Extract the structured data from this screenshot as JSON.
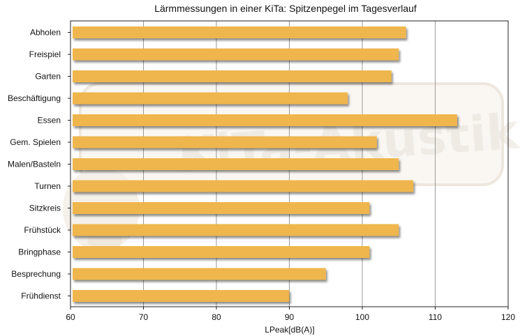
{
  "chart_data": {
    "type": "bar",
    "orientation": "horizontal",
    "title": "Lärmmessungen in einer KiTa: Spitzenpegel im Tagesverlauf",
    "xlabel": "LPeak[dB(A)]",
    "ylabel": "",
    "xlim": [
      60,
      120
    ],
    "xticks": [
      60,
      70,
      80,
      90,
      100,
      110,
      120
    ],
    "grid": "vertical",
    "legend": "none",
    "bar_color": "#efb64d",
    "categories": [
      "Abholen",
      "Freispiel",
      "Garten",
      "Beschäftigung",
      "Essen",
      "Gem. Spielen",
      "Malen/Basteln",
      "Turnen",
      "Sitzkreis",
      "Frühstück",
      "Bringphase",
      "Besprechung",
      "Frühdienst"
    ],
    "values": [
      106,
      105,
      104,
      98,
      113,
      102,
      105,
      107,
      101,
      105,
      101,
      95,
      90
    ],
    "watermark": "KiTa-Akustik"
  }
}
